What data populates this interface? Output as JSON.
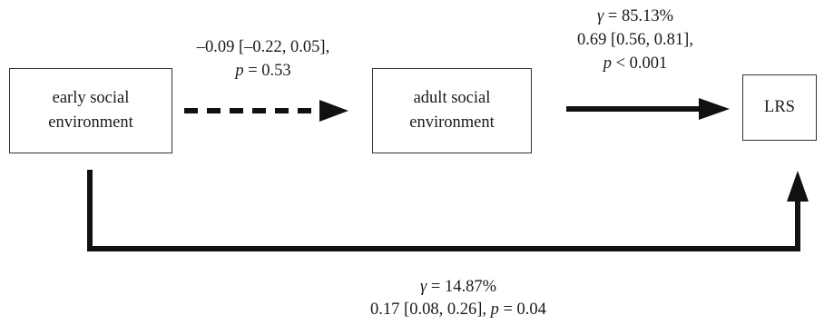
{
  "nodes": {
    "early": {
      "line1": "early social",
      "line2": "environment"
    },
    "adult": {
      "line1": "adult social",
      "line2": "environment"
    },
    "lrs": {
      "label": "LRS"
    }
  },
  "paths": {
    "early_to_adult": {
      "estimate": "–0.09 [–0.22, 0.05],",
      "p_symbol": "p",
      "p_value": " = 0.53",
      "style": "dashed"
    },
    "adult_to_lrs": {
      "gamma_symbol": "γ",
      "gamma_value": " = 85.13%",
      "estimate": "0.69 [0.56, 0.81],",
      "p_symbol": "p",
      "p_value": " < 0.001",
      "style": "solid"
    },
    "early_to_lrs": {
      "gamma_symbol": "γ",
      "gamma_value": " = 14.87%",
      "estimate": "0.17 [0.08, 0.26], ",
      "p_symbol": "p",
      "p_value": " = 0.04",
      "style": "solid"
    }
  },
  "colors": {
    "line": "#111111",
    "box_border": "#333333",
    "text": "#1a1a1a"
  }
}
